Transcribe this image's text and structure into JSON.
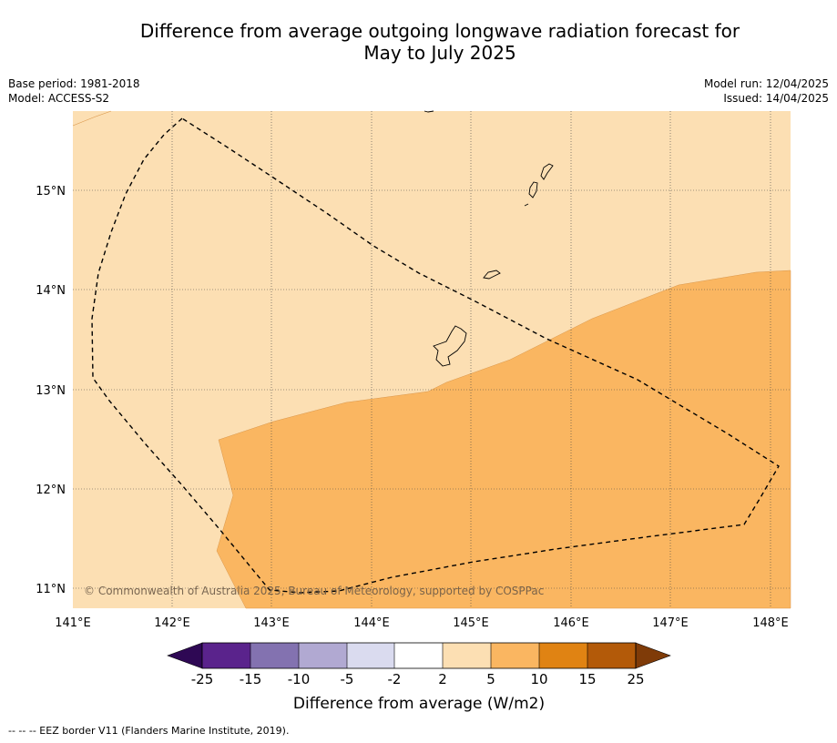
{
  "title_line1": "Difference from average outgoing longwave radiation forecast for",
  "title_line2": "May to July 2025",
  "meta_left": [
    "Base period: 1981-2018",
    "Model: ACCESS-S2"
  ],
  "meta_right": [
    "Model run: 12/04/2025",
    "Issued: 14/04/2025"
  ],
  "map": {
    "lon_ticks": [
      "141°E",
      "142°E",
      "143°E",
      "144°E",
      "145°E",
      "146°E",
      "147°E",
      "148°E"
    ],
    "lat_ticks": [
      "15°N",
      "14°N",
      "13°N",
      "12°N",
      "11°N"
    ],
    "copyright": "© Commonwealth of Australia 2025, Bureau of Meteorology, supported by COSPPac",
    "region_colors": {
      "light": "#fcdfb3",
      "medium": "#fab661"
    }
  },
  "colorbar": {
    "labels": [
      "-25",
      "-15",
      "-10",
      "-5",
      "-2",
      "2",
      "5",
      "10",
      "15",
      "25"
    ],
    "colors": [
      "#2e0854",
      "#5a238c",
      "#8372b0",
      "#b1a9d2",
      "#dadbef",
      "#ffffff",
      "#fcdfb3",
      "#fab661",
      "#e08313",
      "#b35a09",
      "#7f3b08"
    ],
    "title": "Difference from average (W/m2)"
  },
  "footnote": "--  --  -- EEZ border V11 (Flanders Marine Institute, 2019)."
}
